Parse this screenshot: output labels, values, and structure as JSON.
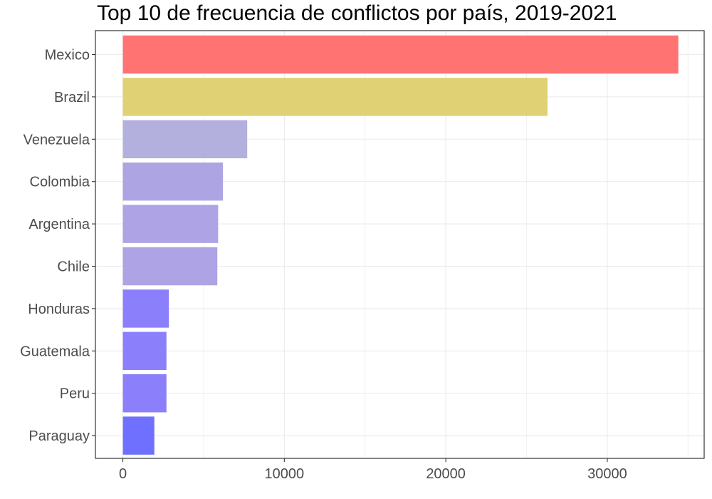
{
  "chart_data": {
    "type": "bar",
    "orientation": "horizontal",
    "title": "Top 10 de frecuencia de conflictos por país, 2019-2021",
    "xlabel": "",
    "ylabel": "",
    "categories": [
      "Mexico",
      "Brazil",
      "Venezuela",
      "Colombia",
      "Argentina",
      "Chile",
      "Honduras",
      "Guatemala",
      "Peru",
      "Paraguay"
    ],
    "values": [
      34400,
      26300,
      7700,
      6200,
      5900,
      5850,
      2850,
      2700,
      2700,
      1950
    ],
    "bar_colors": [
      "#ff7373",
      "#e0d175",
      "#b3b0dd",
      "#ada4e4",
      "#ada3e5",
      "#ada3e5",
      "#8b7ffb",
      "#8b7ffb",
      "#8b7ffb",
      "#7070ff"
    ],
    "xlim": [
      -1700,
      36000
    ],
    "xticks": [
      0,
      10000,
      20000,
      30000
    ],
    "xtick_labels": [
      "0",
      "10000",
      "20000",
      "30000"
    ],
    "grid": true,
    "legend": "none"
  }
}
